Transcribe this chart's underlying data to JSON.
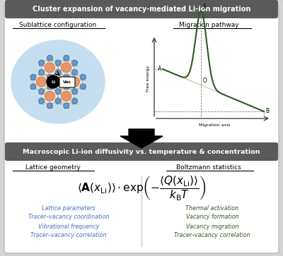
{
  "top_banner_text": "Cluster expansion of vacancy-mediated Li-ion migration",
  "top_banner_bg": "#5a5a5a",
  "top_banner_text_color": "#ffffff",
  "sublattice_title": "Sublattice configuration",
  "migration_title": "Migration pathway",
  "bottom_banner_text": "Macroscopic Li-ion diffusivity vs. temperature & concentration",
  "bottom_banner_bg": "#5a5a5a",
  "bottom_banner_text_color": "#ffffff",
  "lattice_geometry_title": "Lattice geometry",
  "boltzmann_title": "Boltzmann statistics",
  "blue_items": [
    "Lattice parameters",
    "Tracer–vacancy coordination",
    "Vibrational frequency",
    "Tracer–vacancy correlation"
  ],
  "green_items": [
    "Thermal activation",
    "Vacancy formation",
    "Vacancy migration",
    "Tracer–vacancy correlation"
  ],
  "blue_color": "#4472C4",
  "green_color": "#375623",
  "outer_bg": "#d4d4d4",
  "top_panel_bg": "#ffffff",
  "bottom_panel_bg": "#ffffff",
  "sublattice_bg": "#c5dff0",
  "orange_node": "#E8956D",
  "blue_node": "#6699CC",
  "migration_curve_color": "#2d5a27",
  "migration_line_color": "#c8c8a0",
  "axes_color": "#333333"
}
